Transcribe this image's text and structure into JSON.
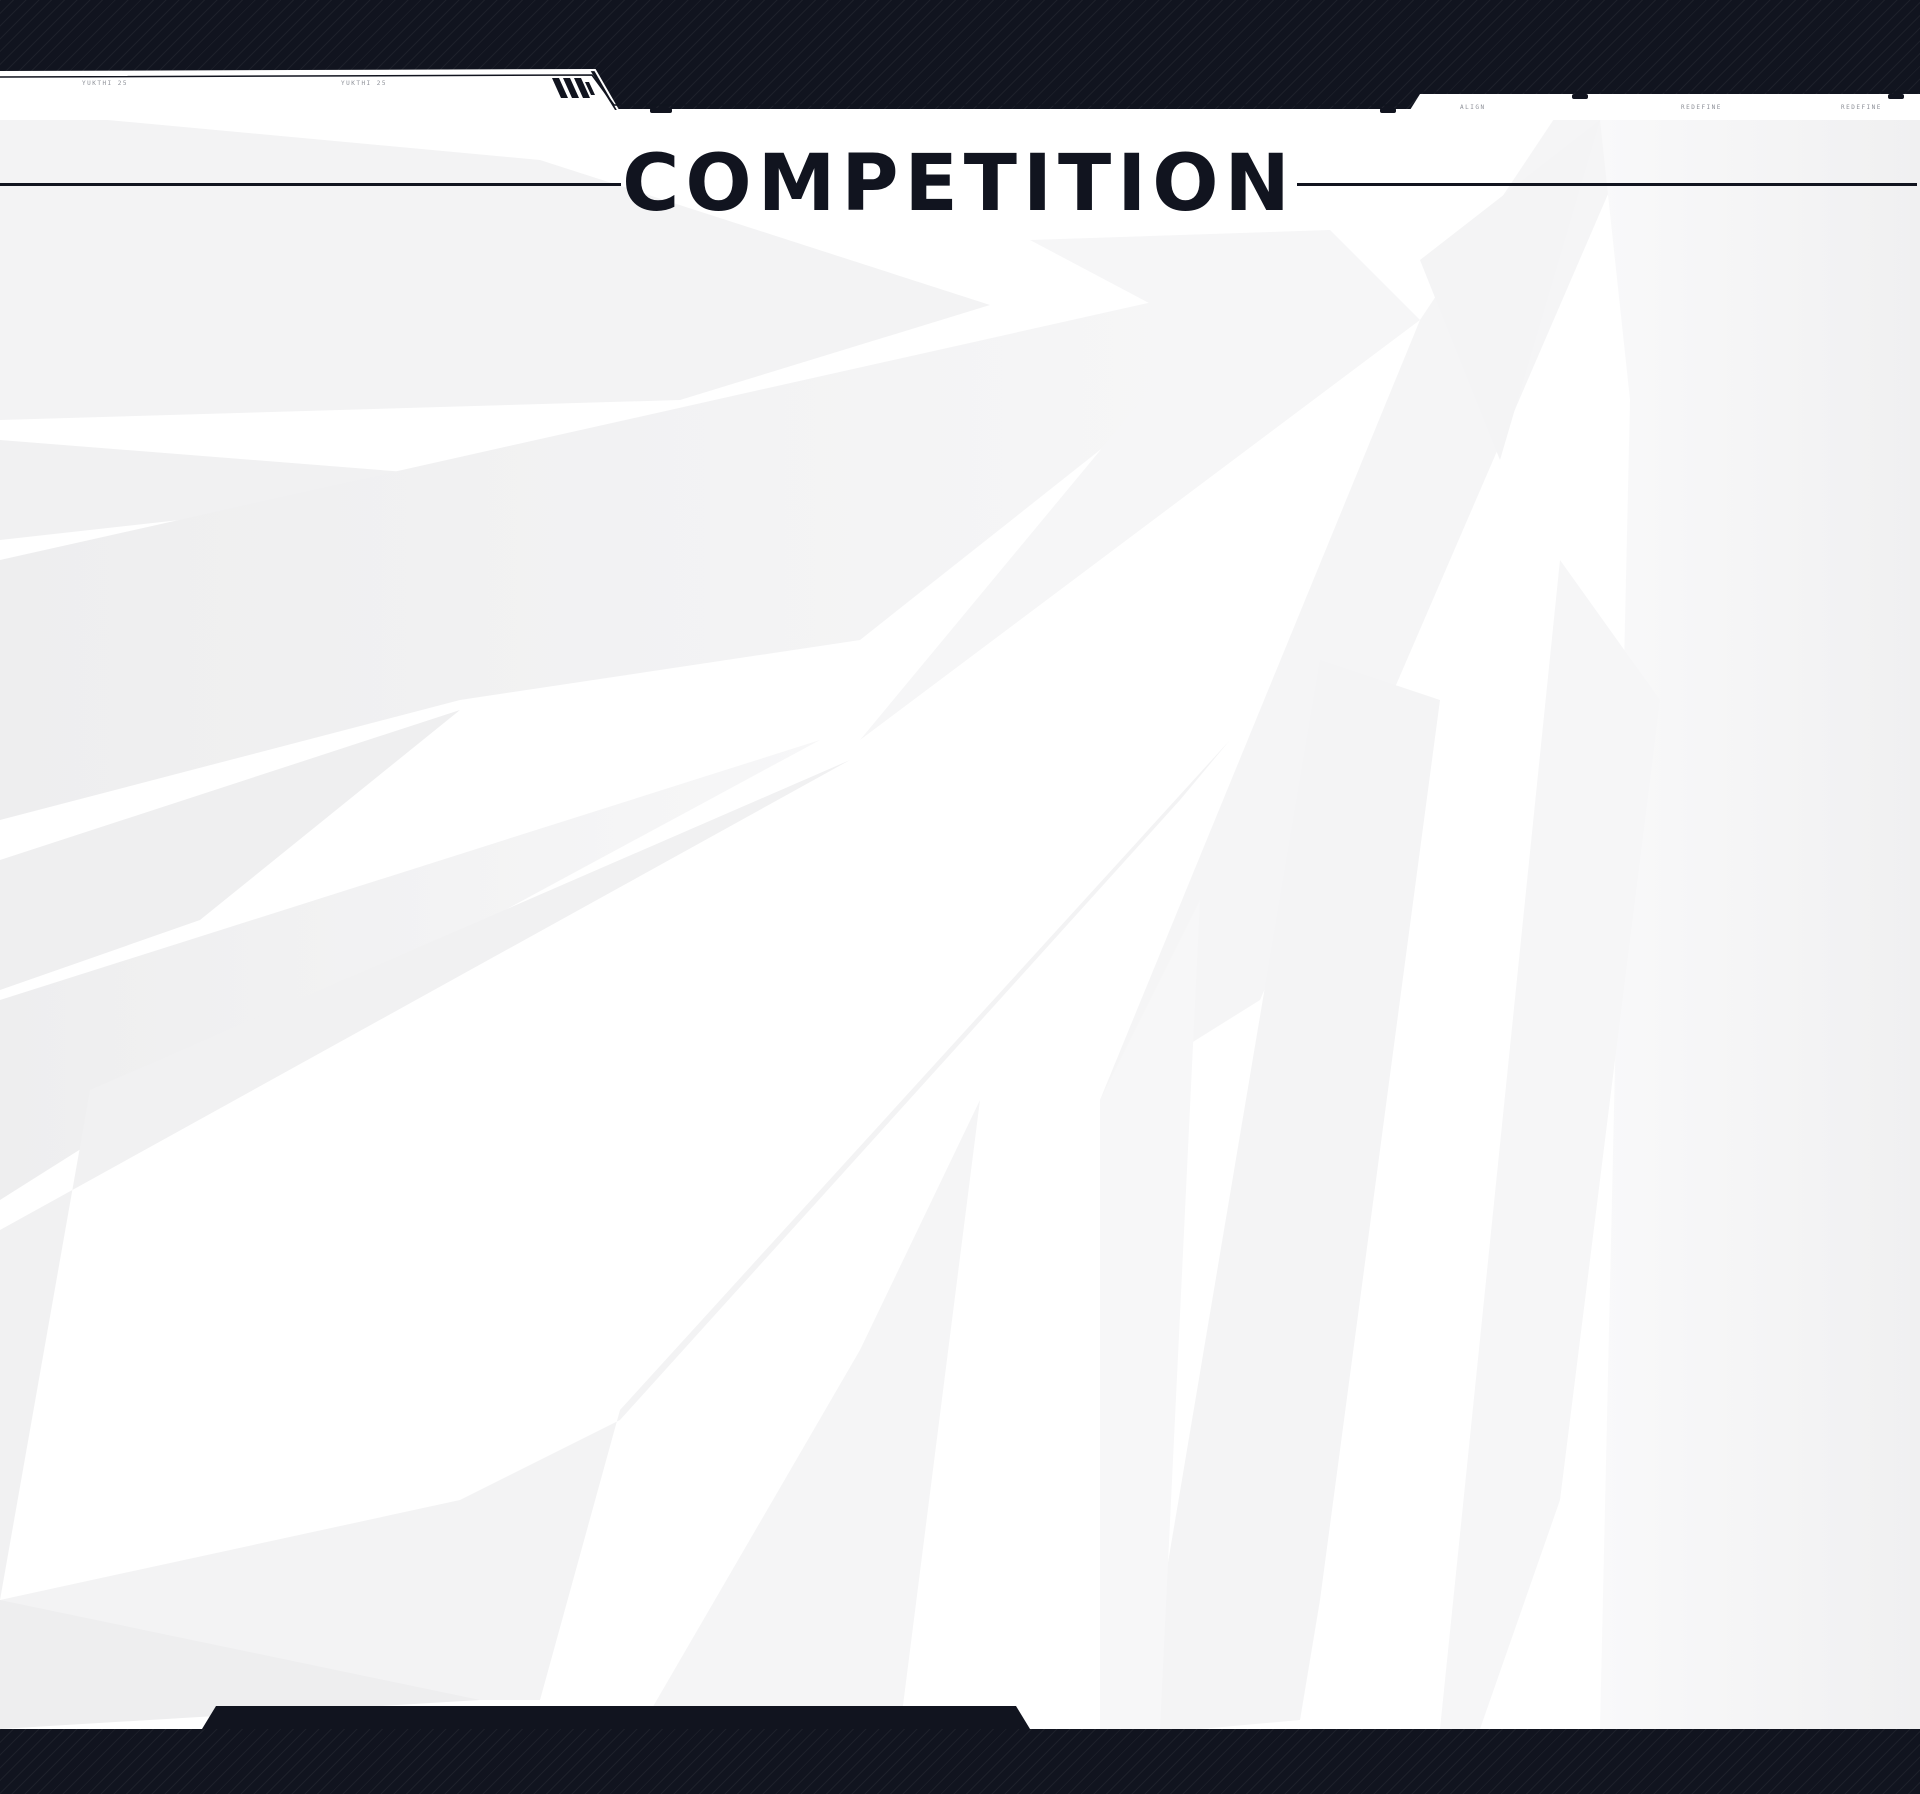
{
  "header": {
    "tag_left_1": "YUKTHI 25",
    "tag_left_2": "YUKTHI 25",
    "tag_right_1": "ALIGN",
    "tag_right_2": "REDEFINE",
    "tag_right_3": "REDEFINE"
  },
  "page": {
    "title": "COMPETITION"
  },
  "colors": {
    "dark": "#11141f",
    "background": "#ffffff",
    "shard": "#f2f2f3"
  },
  "icons": {
    "header_stripes": "triple-slash-stripes-icon"
  }
}
